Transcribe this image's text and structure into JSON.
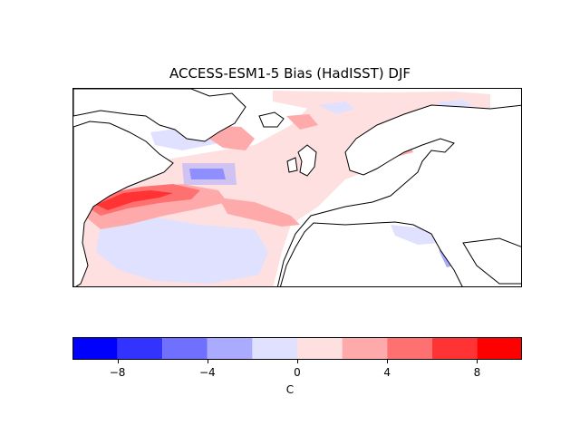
{
  "title": "ACCESS-ESM1-5 Bias (HadISST) DJF",
  "colorbar": {
    "label": "C",
    "range": [
      -10,
      10
    ],
    "bounds": [
      -10,
      -8,
      -6,
      -4,
      -2,
      0,
      2,
      4,
      6,
      8,
      10
    ],
    "colors": [
      "#0000ff",
      "#3333ff",
      "#7070ff",
      "#aaaaff",
      "#e0e0ff",
      "#ffe0e0",
      "#ffaaaa",
      "#ff7070",
      "#ff3333",
      "#ff0000"
    ],
    "ticks": [
      {
        "value": -8,
        "label": "−8"
      },
      {
        "value": -4,
        "label": "−4"
      },
      {
        "value": 0,
        "label": "0"
      },
      {
        "value": 4,
        "label": "4"
      },
      {
        "value": 8,
        "label": "8"
      }
    ]
  },
  "map": {
    "region": "North Atlantic and Europe",
    "land_color": "#ffffff",
    "coastline_color": "#000000"
  }
}
